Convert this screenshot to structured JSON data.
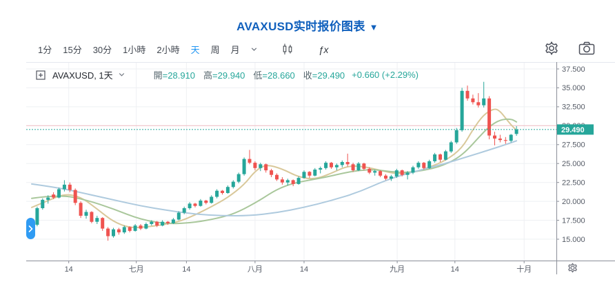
{
  "title": {
    "text": "AVAXUSD实时报价图表",
    "caret": "▼"
  },
  "toolbar": {
    "intervals": [
      "1分",
      "15分",
      "30分",
      "1小時",
      "2小時",
      "天",
      "周",
      "月"
    ],
    "active_interval": "天",
    "indicator_label": "ƒx"
  },
  "legend": {
    "symbol": "AVAXUSD, 1天",
    "ohlc": [
      {
        "label": "開",
        "value": "28.910"
      },
      {
        "label": "高",
        "value": "29.940"
      },
      {
        "label": "低",
        "value": "28.660"
      },
      {
        "label": "收",
        "value": "29.490"
      }
    ],
    "change": "+0.660 (+2.29%)"
  },
  "chart_data": {
    "type": "candlestick",
    "symbol": "AVAXUSD",
    "interval": "1天",
    "title": "AVAXUSD实时报价图表",
    "last_bar": {
      "open": 28.91,
      "high": 29.94,
      "low": 28.66,
      "close": 29.49,
      "change": 0.66,
      "change_pct": "+2.29%"
    },
    "current_price": 29.49,
    "current_price_label": "29.490",
    "high_line_price": 30.0,
    "ylim": [
      12.2,
      38.4
    ],
    "grid": true,
    "y_ticks": [
      "37.500",
      "35.000",
      "32.500",
      "30.000",
      "27.500",
      "25.000",
      "22.500",
      "20.000",
      "17.500",
      "15.000"
    ],
    "x_labels": [
      {
        "label": "14",
        "i": 6.8
      },
      {
        "label": "七月",
        "i": 19.2
      },
      {
        "label": "14",
        "i": 28.4
      },
      {
        "label": "八月",
        "i": 41.0
      },
      {
        "label": "14",
        "i": 50.0
      },
      {
        "label": "九月",
        "i": 67.1
      },
      {
        "label": "14",
        "i": 77.7
      },
      {
        "label": "十月",
        "i": 90.4
      }
    ],
    "candles": [
      [
        16.3,
        17.2,
        15.9,
        16.9
      ],
      [
        16.9,
        19.3,
        16.7,
        19.1
      ],
      [
        19.1,
        20.4,
        18.9,
        20.2
      ],
      [
        20.2,
        20.8,
        19.7,
        20.5
      ],
      [
        20.9,
        21.2,
        20.3,
        20.5
      ],
      [
        20.5,
        21.8,
        20.4,
        21.6
      ],
      [
        21.6,
        22.8,
        21.3,
        22.2
      ],
      [
        22.2,
        22.5,
        21.2,
        21.5
      ],
      [
        21.5,
        21.7,
        19.5,
        19.8
      ],
      [
        19.8,
        20.0,
        17.8,
        18.1
      ],
      [
        18.1,
        18.9,
        17.7,
        18.6
      ],
      [
        18.6,
        18.7,
        17.1,
        17.3
      ],
      [
        17.3,
        18.1,
        17.0,
        17.8
      ],
      [
        17.8,
        17.9,
        16.1,
        16.4
      ],
      [
        16.4,
        16.6,
        14.8,
        15.4
      ],
      [
        15.4,
        16.5,
        15.2,
        16.3
      ],
      [
        16.3,
        16.5,
        15.6,
        15.9
      ],
      [
        15.9,
        16.8,
        15.7,
        16.6
      ],
      [
        16.6,
        16.7,
        15.9,
        16.1
      ],
      [
        16.1,
        17.0,
        16.0,
        16.8
      ],
      [
        16.8,
        17.0,
        16.2,
        16.4
      ],
      [
        16.4,
        17.2,
        16.3,
        17.0
      ],
      [
        17.0,
        17.5,
        16.8,
        17.3
      ],
      [
        17.3,
        17.4,
        16.6,
        16.8
      ],
      [
        16.8,
        17.5,
        16.7,
        17.3
      ],
      [
        17.3,
        17.4,
        16.9,
        17.1
      ],
      [
        17.1,
        17.8,
        17.0,
        17.6
      ],
      [
        17.6,
        18.7,
        17.5,
        18.5
      ],
      [
        18.5,
        19.3,
        18.3,
        19.1
      ],
      [
        19.1,
        19.9,
        18.9,
        19.7
      ],
      [
        19.7,
        19.8,
        19.2,
        19.4
      ],
      [
        19.4,
        20.3,
        19.3,
        20.1
      ],
      [
        20.1,
        20.2,
        19.6,
        19.8
      ],
      [
        19.8,
        20.8,
        19.7,
        20.6
      ],
      [
        20.6,
        21.6,
        20.4,
        21.4
      ],
      [
        21.4,
        21.5,
        20.9,
        21.1
      ],
      [
        21.1,
        22.1,
        21.0,
        21.9
      ],
      [
        21.9,
        22.8,
        21.7,
        22.6
      ],
      [
        22.6,
        23.8,
        22.4,
        23.6
      ],
      [
        23.6,
        25.8,
        23.4,
        25.6
      ],
      [
        25.6,
        26.8,
        24.9,
        25.1
      ],
      [
        25.1,
        25.3,
        24.1,
        24.4
      ],
      [
        24.4,
        25.1,
        24.0,
        24.9
      ],
      [
        24.9,
        25.0,
        23.8,
        24.1
      ],
      [
        24.1,
        24.3,
        23.2,
        23.5
      ],
      [
        23.5,
        23.7,
        22.7,
        22.9
      ],
      [
        22.9,
        23.2,
        22.2,
        22.5
      ],
      [
        22.5,
        23.0,
        22.1,
        22.8
      ],
      [
        22.8,
        22.9,
        22.0,
        22.3
      ],
      [
        22.3,
        23.3,
        22.2,
        23.1
      ],
      [
        23.1,
        24.1,
        23.0,
        23.9
      ],
      [
        23.9,
        24.0,
        23.1,
        23.4
      ],
      [
        23.4,
        24.4,
        23.3,
        24.2
      ],
      [
        24.2,
        24.6,
        23.7,
        24.4
      ],
      [
        24.4,
        25.3,
        24.2,
        25.1
      ],
      [
        25.1,
        25.2,
        24.3,
        24.5
      ],
      [
        24.5,
        25.0,
        24.1,
        24.8
      ],
      [
        24.8,
        25.4,
        24.5,
        25.2
      ],
      [
        25.2,
        26.3,
        24.6,
        24.9
      ],
      [
        24.9,
        25.1,
        23.9,
        24.1
      ],
      [
        24.1,
        25.2,
        24.0,
        25.0
      ],
      [
        25.0,
        25.1,
        24.1,
        24.3
      ],
      [
        24.3,
        24.5,
        23.6,
        23.8
      ],
      [
        23.8,
        24.2,
        23.4,
        24.0
      ],
      [
        24.0,
        24.1,
        23.2,
        23.4
      ],
      [
        23.4,
        23.6,
        22.8,
        23.0
      ],
      [
        23.0,
        23.5,
        22.7,
        23.3
      ],
      [
        23.3,
        24.3,
        23.1,
        24.1
      ],
      [
        24.1,
        24.2,
        23.3,
        23.5
      ],
      [
        23.5,
        24.0,
        22.9,
        23.8
      ],
      [
        23.8,
        24.7,
        23.6,
        24.5
      ],
      [
        24.5,
        25.3,
        24.3,
        25.1
      ],
      [
        25.1,
        25.2,
        24.2,
        24.4
      ],
      [
        24.4,
        25.5,
        24.3,
        25.3
      ],
      [
        25.3,
        26.4,
        25.1,
        26.2
      ],
      [
        26.2,
        26.3,
        25.2,
        25.5
      ],
      [
        25.5,
        26.8,
        25.4,
        26.6
      ],
      [
        26.6,
        28.0,
        26.4,
        27.8
      ],
      [
        27.8,
        29.7,
        27.6,
        29.4
      ],
      [
        29.4,
        35.0,
        29.2,
        34.6
      ],
      [
        34.6,
        35.3,
        33.3,
        33.6
      ],
      [
        33.6,
        34.1,
        32.8,
        33.1
      ],
      [
        33.1,
        34.3,
        32.4,
        32.7
      ],
      [
        32.7,
        35.8,
        32.4,
        33.6
      ],
      [
        33.6,
        33.9,
        28.2,
        28.7
      ],
      [
        28.7,
        29.2,
        27.4,
        28.3
      ],
      [
        28.3,
        28.8,
        27.8,
        28.1
      ],
      [
        28.1,
        28.5,
        27.6,
        28.0
      ],
      [
        28.0,
        28.9,
        27.8,
        28.8
      ],
      [
        28.91,
        29.94,
        28.66,
        29.49
      ]
    ],
    "ma_lines": [
      {
        "name": "ma-short",
        "color": "#d9c89a",
        "points": [
          [
            0,
            19.2
          ],
          [
            3,
            20.1
          ],
          [
            6,
            21.0
          ],
          [
            9,
            20.6
          ],
          [
            12,
            19.0
          ],
          [
            15,
            17.3
          ],
          [
            18,
            16.5
          ],
          [
            21,
            16.6
          ],
          [
            24,
            16.9
          ],
          [
            27,
            17.3
          ],
          [
            30,
            18.2
          ],
          [
            33,
            19.3
          ],
          [
            36,
            20.5
          ],
          [
            39,
            22.2
          ],
          [
            41,
            24.0
          ],
          [
            43,
            24.9
          ],
          [
            46,
            24.3
          ],
          [
            49,
            23.2
          ],
          [
            52,
            22.9
          ],
          [
            55,
            23.7
          ],
          [
            58,
            24.7
          ],
          [
            61,
            24.6
          ],
          [
            64,
            24.1
          ],
          [
            67,
            23.6
          ],
          [
            70,
            23.8
          ],
          [
            73,
            24.5
          ],
          [
            76,
            25.4
          ],
          [
            79,
            27.0
          ],
          [
            81,
            29.5
          ],
          [
            83,
            31.5
          ],
          [
            85,
            32.3
          ],
          [
            86,
            31.9
          ],
          [
            87,
            31.0
          ],
          [
            88,
            30.1
          ],
          [
            89,
            29.4
          ]
        ]
      },
      {
        "name": "ma-mid",
        "color": "#a9c79b",
        "points": [
          [
            0,
            20.4
          ],
          [
            5,
            20.9
          ],
          [
            10,
            20.2
          ],
          [
            15,
            19.0
          ],
          [
            20,
            17.6
          ],
          [
            25,
            17.0
          ],
          [
            30,
            17.2
          ],
          [
            35,
            17.9
          ],
          [
            38,
            18.6
          ],
          [
            42,
            20.2
          ],
          [
            45,
            21.6
          ],
          [
            48,
            22.4
          ],
          [
            51,
            22.8
          ],
          [
            54,
            23.2
          ],
          [
            57,
            23.7
          ],
          [
            60,
            24.1
          ],
          [
            63,
            24.2
          ],
          [
            66,
            23.9
          ],
          [
            69,
            23.8
          ],
          [
            72,
            24.1
          ],
          [
            75,
            24.6
          ],
          [
            78,
            25.6
          ],
          [
            80,
            26.8
          ],
          [
            82,
            28.4
          ],
          [
            84,
            29.9
          ],
          [
            86,
            30.8
          ],
          [
            88,
            30.9
          ],
          [
            89,
            30.5
          ]
        ]
      },
      {
        "name": "ma-long",
        "color": "#aecade",
        "points": [
          [
            0,
            22.3
          ],
          [
            5,
            21.8
          ],
          [
            10,
            21.0
          ],
          [
            15,
            20.2
          ],
          [
            20,
            19.4
          ],
          [
            25,
            18.8
          ],
          [
            30,
            18.3
          ],
          [
            35,
            18.1
          ],
          [
            40,
            18.1
          ],
          [
            45,
            18.5
          ],
          [
            50,
            19.2
          ],
          [
            55,
            20.1
          ],
          [
            60,
            21.2
          ],
          [
            65,
            22.8
          ],
          [
            70,
            23.9
          ],
          [
            75,
            24.8
          ],
          [
            80,
            25.9
          ],
          [
            84,
            26.8
          ],
          [
            87,
            27.5
          ],
          [
            89,
            28.0
          ]
        ]
      }
    ]
  },
  "colors": {
    "up": "#26a69a",
    "down": "#ef5350",
    "title_blue": "#1060bd",
    "active_blue": "#2196f3",
    "badge_bg": "#26a69a",
    "badge_text": "#ffffff",
    "axis_text": "#555b66",
    "toolbar_text": "#40464f",
    "grid": "#eef0f3",
    "axis_line": "#8a8e98",
    "current_line": "#26a69a",
    "high_line": "#f23645",
    "scroll_pill": "#2f9bf3",
    "icon_stroke": "#4a4e59"
  }
}
